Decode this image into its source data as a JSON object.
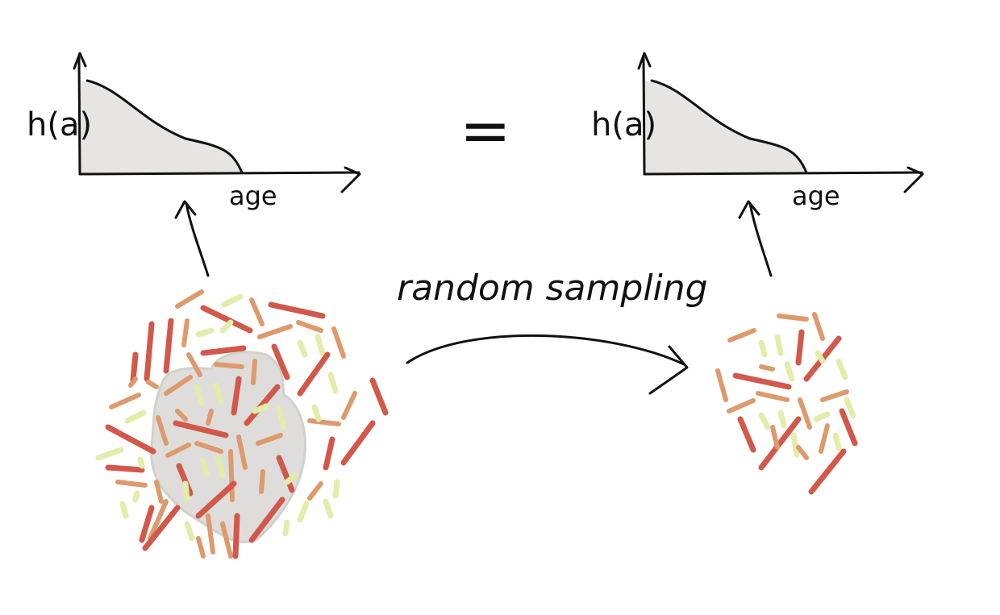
{
  "left_plot": {
    "ylabel": "h(a)",
    "xlabel": "age"
  },
  "right_plot": {
    "ylabel": "h(a)",
    "xlabel": "age"
  },
  "equals_sign": "=",
  "arrow_label": "random sampling",
  "colors": {
    "ink": "#111111",
    "histogram_fill": "#e6e5e3",
    "cluster_shade": "#d9d8d5",
    "cell_red": "#d1584a",
    "cell_orange": "#dd9a6c",
    "cell_yellow": "#e3ecaa"
  }
}
